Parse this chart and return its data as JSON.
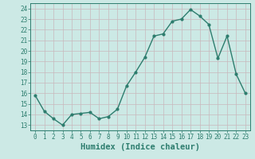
{
  "x": [
    0,
    1,
    2,
    3,
    4,
    5,
    6,
    7,
    8,
    9,
    10,
    11,
    12,
    13,
    14,
    15,
    16,
    17,
    18,
    19,
    20,
    21,
    22,
    23
  ],
  "y": [
    15.8,
    14.3,
    13.6,
    13.0,
    14.0,
    14.1,
    14.2,
    13.6,
    13.8,
    14.5,
    16.7,
    18.0,
    19.4,
    21.4,
    21.6,
    22.8,
    23.0,
    23.9,
    23.3,
    22.5,
    19.3,
    21.4,
    17.8,
    16.0
  ],
  "line_color": "#2d7d6e",
  "marker": "o",
  "marker_size": 2.0,
  "linewidth": 1.0,
  "bg_plot": "#cce9e5",
  "bg_fig": "#cce9e5",
  "grid_color": "#c8b8bc",
  "xlabel": "Humidex (Indice chaleur)",
  "xlabel_fontsize": 7.5,
  "xlim": [
    -0.5,
    23.5
  ],
  "ylim": [
    12.5,
    24.5
  ],
  "yticks": [
    13,
    14,
    15,
    16,
    17,
    18,
    19,
    20,
    21,
    22,
    23,
    24
  ],
  "xticks": [
    0,
    1,
    2,
    3,
    4,
    5,
    6,
    7,
    8,
    9,
    10,
    11,
    12,
    13,
    14,
    15,
    16,
    17,
    18,
    19,
    20,
    21,
    22,
    23
  ],
  "tick_fontsize": 5.5,
  "tick_color": "#2d7d6e",
  "spine_color": "#2d7d6e"
}
